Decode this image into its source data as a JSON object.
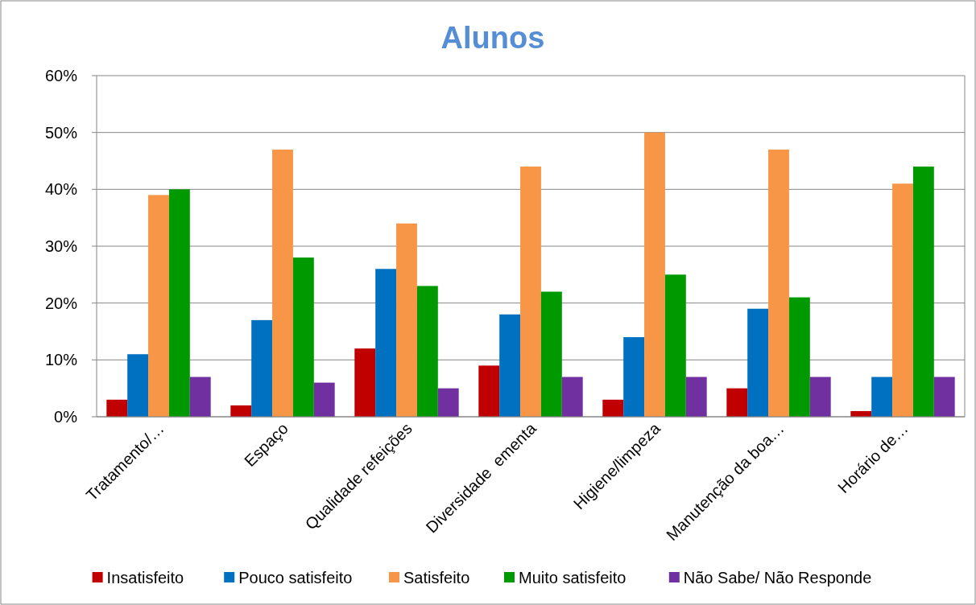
{
  "chart_data": {
    "type": "bar",
    "title": "Alunos",
    "categories": [
      "Tratamento/…",
      "Espaço",
      "Qualidade refeições",
      "Diversidade  ementa",
      "Higiene/limpeza",
      "Manutenção da boa…",
      "Horário de…"
    ],
    "series": [
      {
        "name": "Insatisfeito",
        "color": "#c00000",
        "values": [
          3,
          2,
          12,
          9,
          3,
          5,
          1
        ]
      },
      {
        "name": "Pouco satisfeito",
        "color": "#0070c0",
        "values": [
          11,
          17,
          26,
          18,
          14,
          19,
          7
        ]
      },
      {
        "name": "Satisfeito",
        "color": "#f79646",
        "values": [
          39,
          47,
          34,
          44,
          50,
          47,
          41
        ]
      },
      {
        "name": "Muito satisfeito",
        "color": "#009900",
        "values": [
          40,
          28,
          23,
          22,
          25,
          21,
          44
        ]
      },
      {
        "name": "Não Sabe/ Não Responde",
        "color": "#7030a0",
        "values": [
          7,
          6,
          5,
          7,
          7,
          7,
          7
        ]
      }
    ],
    "ylim": [
      0,
      60
    ],
    "yticks": [
      {
        "value": 0,
        "label": "0%"
      },
      {
        "value": 10,
        "label": "10%"
      },
      {
        "value": 20,
        "label": "20%"
      },
      {
        "value": 30,
        "label": "30%"
      },
      {
        "value": 40,
        "label": "40%"
      },
      {
        "value": 50,
        "label": "50%"
      },
      {
        "value": 60,
        "label": "60%"
      }
    ],
    "grid": "y",
    "legend": "bottom"
  }
}
